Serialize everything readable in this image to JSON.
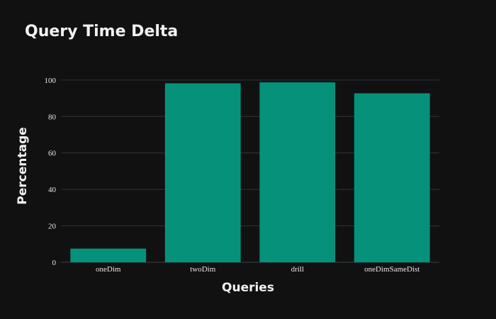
{
  "chart_data": {
    "type": "bar",
    "title": "Query Time Delta",
    "xlabel": "Queries",
    "ylabel": "Percentage",
    "categories": [
      "oneDim",
      "twoDim",
      "drill",
      "oneDimSameDist"
    ],
    "values": [
      7.5,
      98.2,
      98.7,
      92.7
    ],
    "ylim": [
      0,
      105
    ],
    "yticks": [
      0,
      20,
      40,
      60,
      80,
      100
    ],
    "grid": true,
    "colors": {
      "background": "#111111",
      "bar": "#06927a",
      "grid": "#2e3440"
    }
  }
}
